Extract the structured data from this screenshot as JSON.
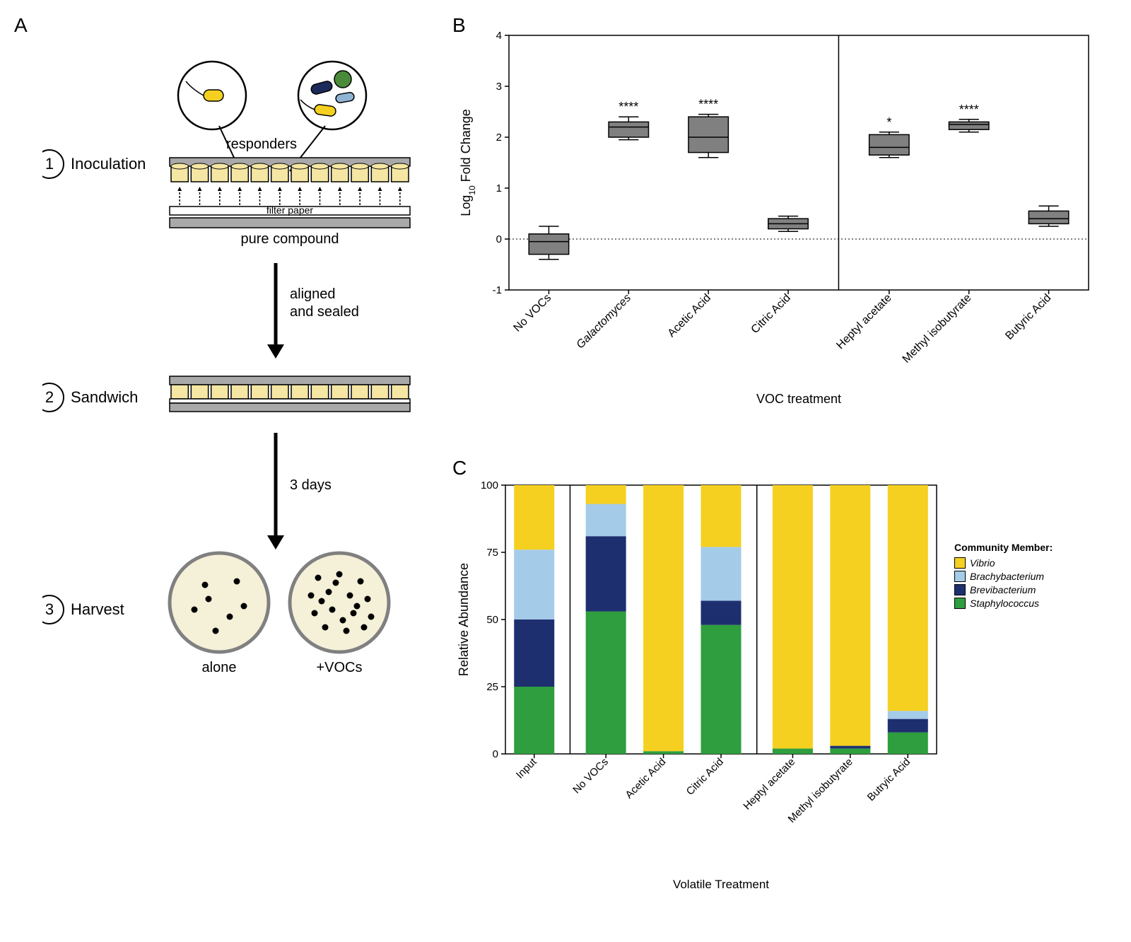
{
  "panelA": {
    "label": "A",
    "steps": [
      {
        "num": "1",
        "title": "Inoculation"
      },
      {
        "num": "2",
        "title": "Sandwich"
      },
      {
        "num": "3",
        "title": "Harvest"
      }
    ],
    "labels": {
      "responders": "responders",
      "filter_paper": "filter paper",
      "pure_compound": "pure compound",
      "aligned_sealed_1": "aligned",
      "aligned_sealed_2": "and sealed",
      "three_days": "3 days",
      "alone": "alone",
      "plus_vocs": "+VOCs"
    },
    "colors": {
      "plate_gray": "#a9a9a9",
      "well_yellow": "#f5e6a3",
      "paper_white": "#ffffff",
      "bacteria_yellow": "#f5d020",
      "bacteria_green": "#4a8b3a",
      "bacteria_navy": "#1a2a5a",
      "bacteria_lightblue": "#8fb4d4",
      "dish_fill": "#f5f0d8",
      "dish_stroke": "#808080"
    }
  },
  "panelB": {
    "label": "B",
    "type": "boxplot",
    "ylabel": "Log₁₀ Fold Change",
    "xlabel": "VOC treatment",
    "ylim": [
      -1,
      4
    ],
    "yticks": [
      -1,
      0,
      1,
      2,
      3,
      4
    ],
    "box_fill": "#808080",
    "bg": "#ffffff",
    "font_size_axis": 18,
    "font_size_tick": 15,
    "separator_after_index": 3,
    "categories": [
      {
        "name": "No VOCs",
        "italic": false,
        "median": -0.05,
        "q1": -0.3,
        "q3": 0.1,
        "min": -0.4,
        "max": 0.25,
        "sig": ""
      },
      {
        "name": "Galactomyces",
        "italic": true,
        "median": 2.2,
        "q1": 2.0,
        "q3": 2.3,
        "min": 1.95,
        "max": 2.4,
        "sig": "****"
      },
      {
        "name": "Acetic Acid",
        "italic": false,
        "median": 2.0,
        "q1": 1.7,
        "q3": 2.4,
        "min": 1.6,
        "max": 2.45,
        "sig": "****"
      },
      {
        "name": "Citric Acid",
        "italic": false,
        "median": 0.3,
        "q1": 0.2,
        "q3": 0.4,
        "min": 0.15,
        "max": 0.45,
        "sig": ""
      },
      {
        "name": "Heptyl acetate",
        "italic": false,
        "median": 1.8,
        "q1": 1.65,
        "q3": 2.05,
        "min": 1.6,
        "max": 2.1,
        "sig": "*"
      },
      {
        "name": "Methyl isobutyrate",
        "italic": false,
        "median": 2.25,
        "q1": 2.15,
        "q3": 2.3,
        "min": 2.1,
        "max": 2.35,
        "sig": "****"
      },
      {
        "name": "Butyric Acid",
        "italic": false,
        "median": 0.4,
        "q1": 0.3,
        "q3": 0.55,
        "min": 0.25,
        "max": 0.65,
        "sig": ""
      }
    ]
  },
  "panelC": {
    "label": "C",
    "type": "stacked-bar",
    "ylabel": "Relative Abundance",
    "xlabel": "Volatile Treatment",
    "ylim": [
      0,
      100
    ],
    "yticks": [
      0,
      25,
      50,
      75,
      100
    ],
    "legend_title": "Community Member:",
    "members": [
      {
        "key": "Vibrio",
        "name": "Vibrio",
        "italic": true,
        "color": "#f5d020"
      },
      {
        "key": "Brachybacterium",
        "name": "Brachybacterium",
        "italic": true,
        "color": "#a4cbe8"
      },
      {
        "key": "Brevibacterium",
        "name": "Brevibacterium",
        "italic": true,
        "color": "#1e2f6f"
      },
      {
        "key": "Staphylococcus",
        "name": "Staphylococcus",
        "italic": true,
        "color": "#2e9e3e"
      }
    ],
    "separators_after_index": [
      0,
      3
    ],
    "categories": [
      {
        "name": "Input",
        "values": {
          "Staphylococcus": 25,
          "Brevibacterium": 25,
          "Brachybacterium": 26,
          "Vibrio": 24
        }
      },
      {
        "name": "No VOCs",
        "values": {
          "Staphylococcus": 53,
          "Brevibacterium": 28,
          "Brachybacterium": 12,
          "Vibrio": 7
        }
      },
      {
        "name": "Acetic Acid",
        "values": {
          "Staphylococcus": 1,
          "Brevibacterium": 0,
          "Brachybacterium": 0,
          "Vibrio": 99
        }
      },
      {
        "name": "Citric Acid",
        "values": {
          "Staphylococcus": 48,
          "Brevibacterium": 9,
          "Brachybacterium": 20,
          "Vibrio": 23
        }
      },
      {
        "name": "Heptyl acetate",
        "values": {
          "Staphylococcus": 2,
          "Brevibacterium": 0,
          "Brachybacterium": 0,
          "Vibrio": 98
        }
      },
      {
        "name": "Methyl isobutyrate",
        "values": {
          "Staphylococcus": 2,
          "Brevibacterium": 1,
          "Brachybacterium": 0,
          "Vibrio": 97
        }
      },
      {
        "name": "Butryic Acid",
        "values": {
          "Staphylococcus": 8,
          "Brevibacterium": 5,
          "Brachybacterium": 3,
          "Vibrio": 84
        }
      }
    ]
  }
}
